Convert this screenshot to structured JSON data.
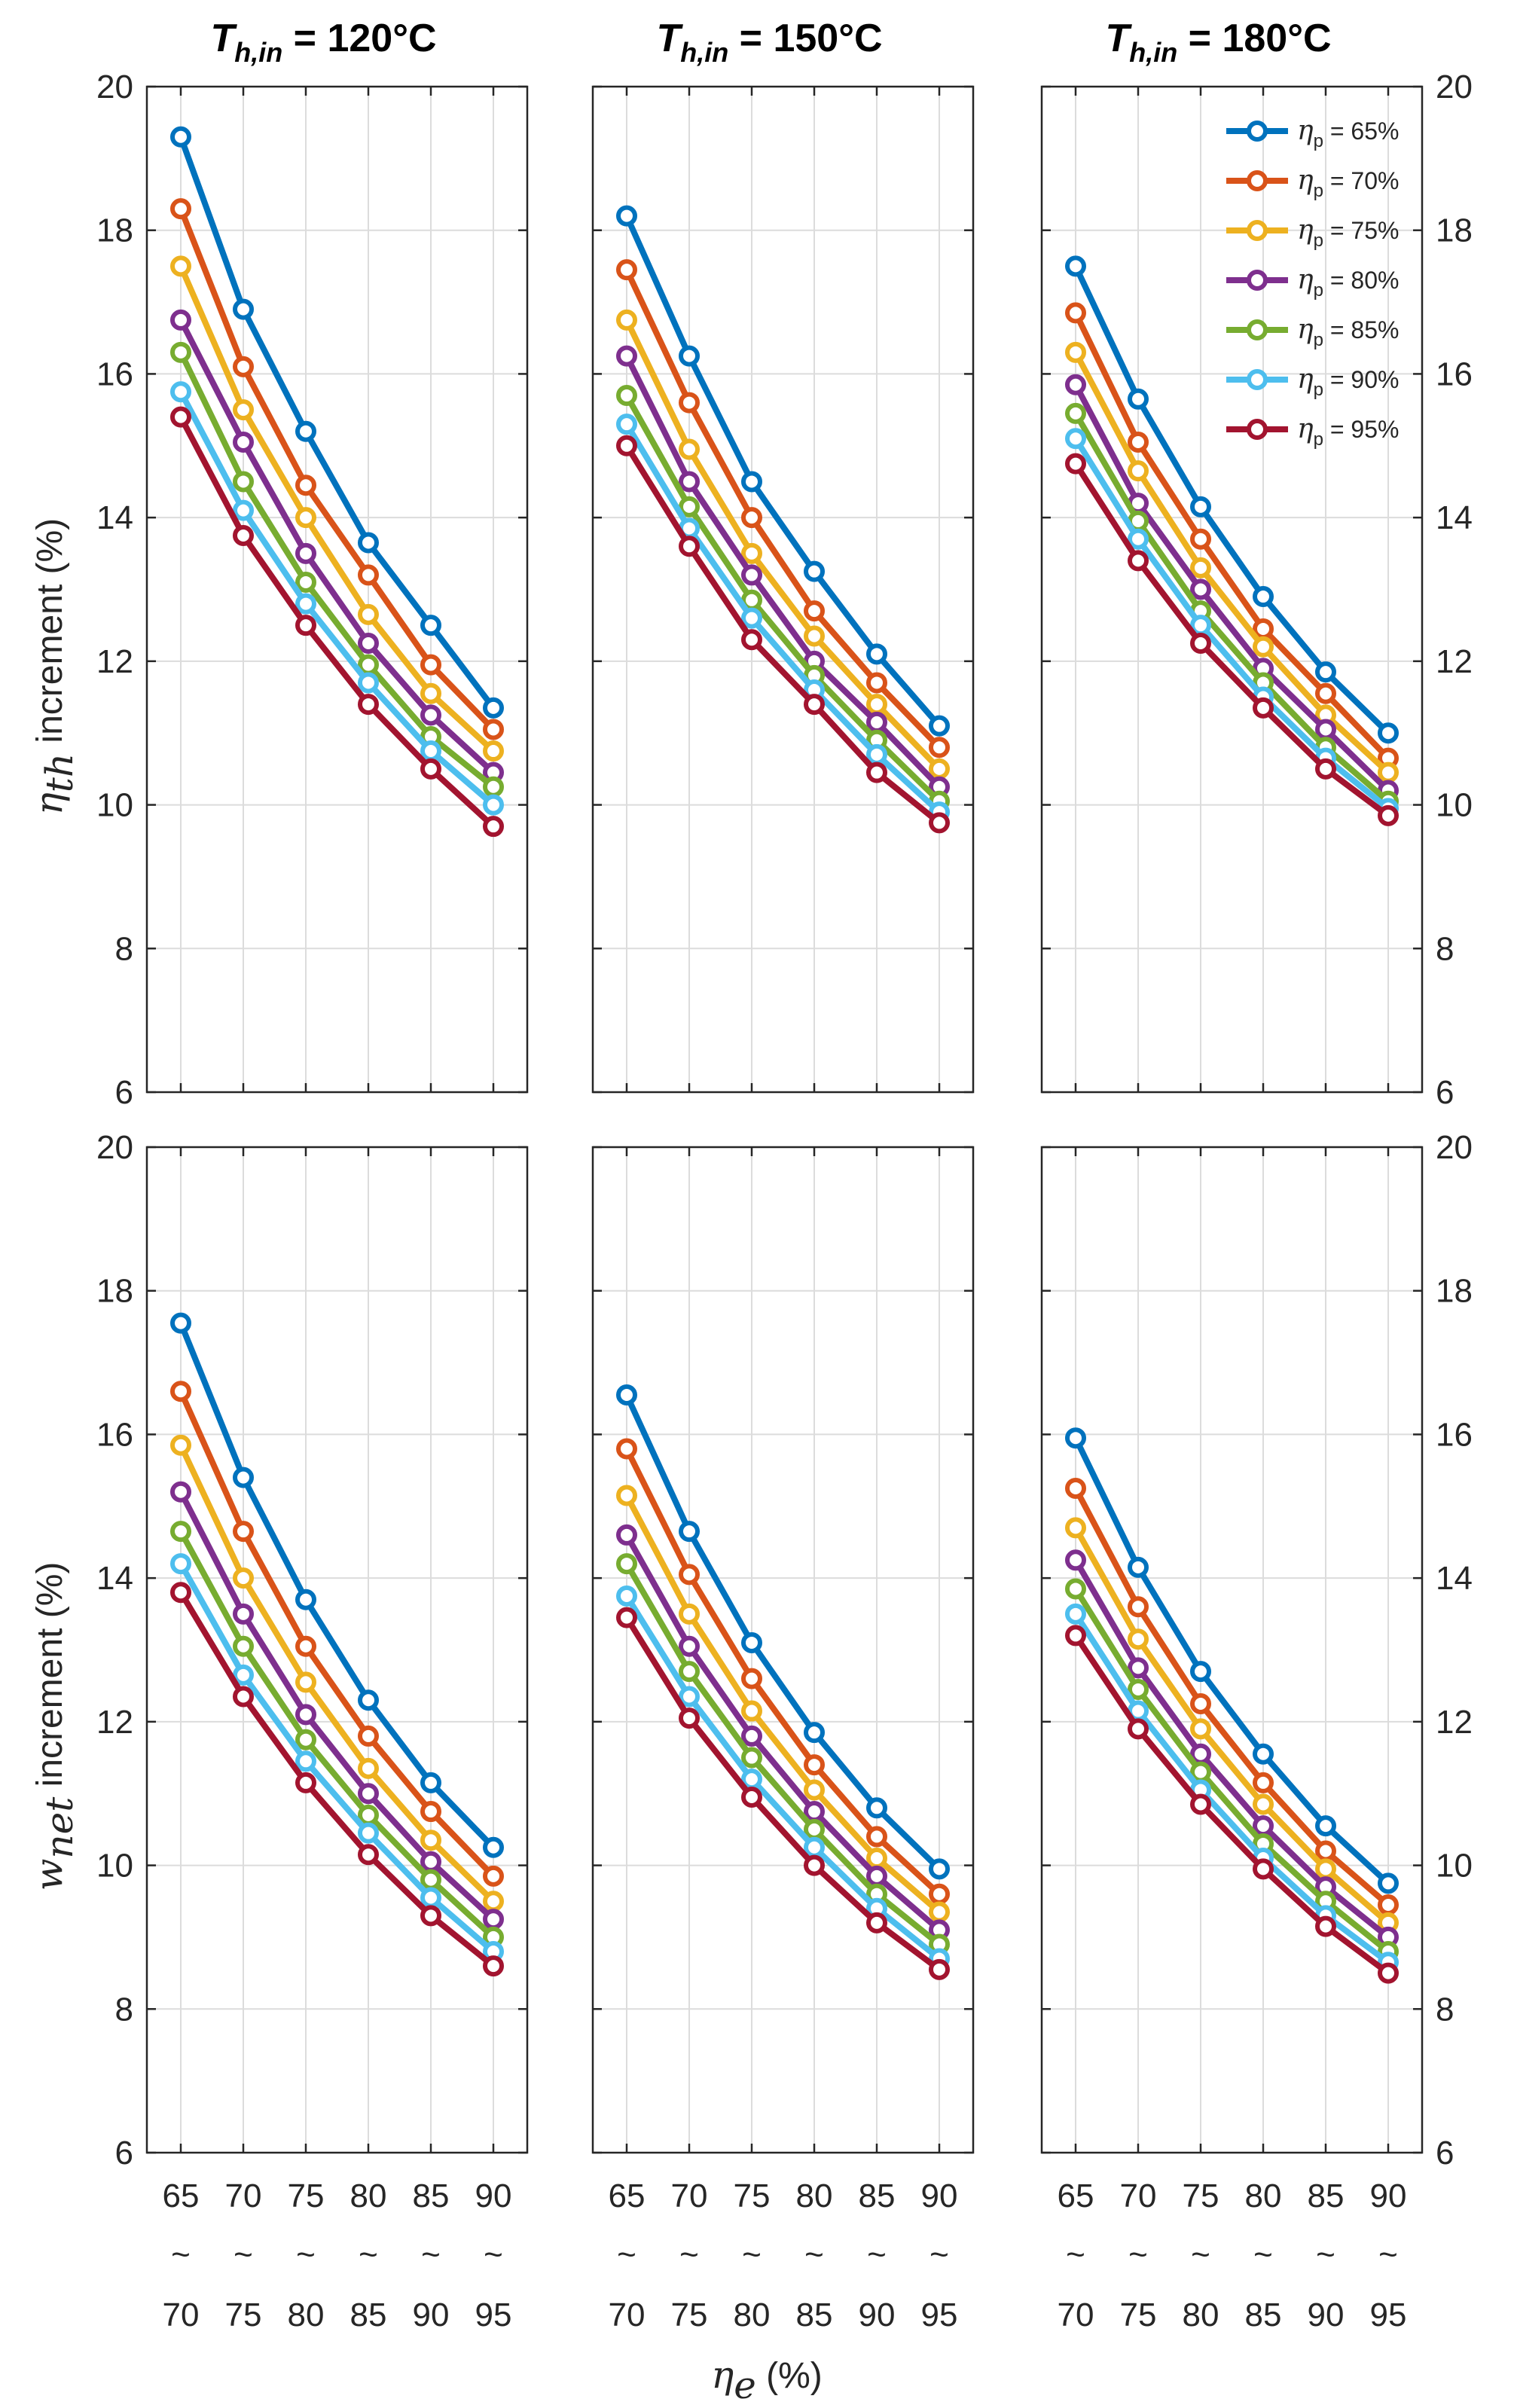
{
  "figure": {
    "x_axis_label": {
      "symbol": "η",
      "subscript": "e",
      "rest": " (%)"
    },
    "row_labels": [
      {
        "symbol": "η",
        "subscript": "th",
        "rest": " increment (%)"
      },
      {
        "symbol": "w",
        "subscript": "net",
        "rest": " increment (%)"
      }
    ],
    "column_titles": [
      {
        "symbol": "T",
        "subscript": "h,in",
        "rest": " = 120°C"
      },
      {
        "symbol": "T",
        "subscript": "h,in",
        "rest": " = 150°C"
      },
      {
        "symbol": "T",
        "subscript": "h,in",
        "rest": " = 180°C"
      }
    ],
    "tilde": "~",
    "legend_symbol": "η",
    "legend_subscript": "p",
    "legend_placement": "top-right of upper-right panel"
  },
  "chart_data": {
    "type": "line",
    "layout": "2 rows x 3 columns, shared axes",
    "x_categories": [
      {
        "top": "65",
        "bottom": "70"
      },
      {
        "top": "70",
        "bottom": "75"
      },
      {
        "top": "75",
        "bottom": "80"
      },
      {
        "top": "80",
        "bottom": "85"
      },
      {
        "top": "85",
        "bottom": "90"
      },
      {
        "top": "90",
        "bottom": "95"
      }
    ],
    "y_range": [
      6,
      20
    ],
    "y_ticks": [
      "6",
      "8",
      "10",
      "12",
      "14",
      "16",
      "18",
      "20"
    ],
    "grid": true,
    "series_meta": [
      {
        "name": "= 65%",
        "color": "#0072BD"
      },
      {
        "name": "= 70%",
        "color": "#D95319"
      },
      {
        "name": "= 75%",
        "color": "#EDB120"
      },
      {
        "name": "= 80%",
        "color": "#7E2F8E"
      },
      {
        "name": "= 85%",
        "color": "#77AC30"
      },
      {
        "name": "= 90%",
        "color": "#4DBEEE"
      },
      {
        "name": "= 95%",
        "color": "#A2142F"
      }
    ],
    "panels": [
      {
        "row": 0,
        "col": 0,
        "series": [
          [
            19.3,
            16.9,
            15.2,
            13.65,
            12.5,
            11.35
          ],
          [
            18.3,
            16.1,
            14.45,
            13.2,
            11.95,
            11.05
          ],
          [
            17.5,
            15.5,
            14.0,
            12.65,
            11.55,
            10.75
          ],
          [
            16.75,
            15.05,
            13.5,
            12.25,
            11.25,
            10.45
          ],
          [
            16.3,
            14.5,
            13.1,
            11.95,
            10.95,
            10.25
          ],
          [
            15.75,
            14.1,
            12.8,
            11.7,
            10.75,
            10.0
          ],
          [
            15.4,
            13.75,
            12.5,
            11.4,
            10.5,
            9.7
          ]
        ]
      },
      {
        "row": 0,
        "col": 1,
        "series": [
          [
            18.2,
            16.25,
            14.5,
            13.25,
            12.1,
            11.1
          ],
          [
            17.45,
            15.6,
            14.0,
            12.7,
            11.7,
            10.8
          ],
          [
            16.75,
            14.95,
            13.5,
            12.35,
            11.4,
            10.5
          ],
          [
            16.25,
            14.5,
            13.2,
            12.0,
            11.15,
            10.25
          ],
          [
            15.7,
            14.15,
            12.85,
            11.8,
            10.9,
            10.05
          ],
          [
            15.3,
            13.85,
            12.6,
            11.6,
            10.7,
            9.9
          ],
          [
            15.0,
            13.6,
            12.3,
            11.4,
            10.45,
            9.75
          ]
        ]
      },
      {
        "row": 0,
        "col": 2,
        "series": [
          [
            17.5,
            15.65,
            14.15,
            12.9,
            11.85,
            11.0
          ],
          [
            16.85,
            15.05,
            13.7,
            12.45,
            11.55,
            10.65
          ],
          [
            16.3,
            14.65,
            13.3,
            12.2,
            11.25,
            10.45
          ],
          [
            15.85,
            14.2,
            13.0,
            11.9,
            11.05,
            10.2
          ],
          [
            15.45,
            13.95,
            12.7,
            11.7,
            10.8,
            10.05
          ],
          [
            15.1,
            13.7,
            12.5,
            11.5,
            10.65,
            9.95
          ],
          [
            14.75,
            13.4,
            12.25,
            11.35,
            10.5,
            9.85
          ]
        ]
      },
      {
        "row": 1,
        "col": 0,
        "series": [
          [
            17.55,
            15.4,
            13.7,
            12.3,
            11.15,
            10.25
          ],
          [
            16.6,
            14.65,
            13.05,
            11.8,
            10.75,
            9.85
          ],
          [
            15.85,
            14.0,
            12.55,
            11.35,
            10.35,
            9.5
          ],
          [
            15.2,
            13.5,
            12.1,
            11.0,
            10.05,
            9.25
          ],
          [
            14.65,
            13.05,
            11.75,
            10.7,
            9.8,
            9.0
          ],
          [
            14.2,
            12.65,
            11.45,
            10.45,
            9.55,
            8.8
          ],
          [
            13.8,
            12.35,
            11.15,
            10.15,
            9.3,
            8.6
          ]
        ]
      },
      {
        "row": 1,
        "col": 1,
        "series": [
          [
            16.55,
            14.65,
            13.1,
            11.85,
            10.8,
            9.95
          ],
          [
            15.8,
            14.05,
            12.6,
            11.4,
            10.4,
            9.6
          ],
          [
            15.15,
            13.5,
            12.15,
            11.05,
            10.1,
            9.35
          ],
          [
            14.6,
            13.05,
            11.8,
            10.75,
            9.85,
            9.1
          ],
          [
            14.2,
            12.7,
            11.5,
            10.5,
            9.6,
            8.9
          ],
          [
            13.75,
            12.35,
            11.2,
            10.25,
            9.4,
            8.7
          ],
          [
            13.45,
            12.05,
            10.95,
            10.0,
            9.2,
            8.55
          ]
        ]
      },
      {
        "row": 1,
        "col": 2,
        "series": [
          [
            15.95,
            14.15,
            12.7,
            11.55,
            10.55,
            9.75
          ],
          [
            15.25,
            13.6,
            12.25,
            11.15,
            10.2,
            9.45
          ],
          [
            14.7,
            13.15,
            11.9,
            10.85,
            9.95,
            9.2
          ],
          [
            14.25,
            12.75,
            11.55,
            10.55,
            9.7,
            9.0
          ],
          [
            13.85,
            12.45,
            11.3,
            10.3,
            9.5,
            8.8
          ],
          [
            13.5,
            12.15,
            11.05,
            10.1,
            9.3,
            8.65
          ],
          [
            13.2,
            11.9,
            10.85,
            9.95,
            9.15,
            8.5
          ]
        ]
      }
    ]
  }
}
